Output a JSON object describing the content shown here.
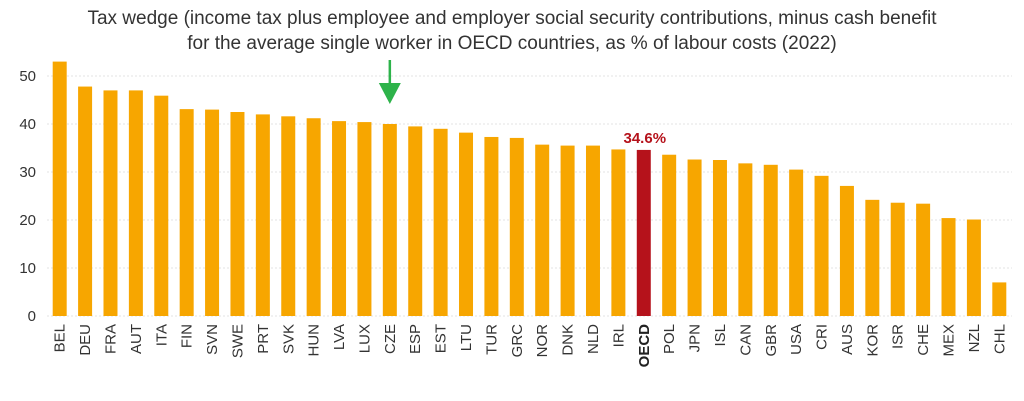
{
  "chart_data": {
    "type": "bar",
    "title_line1": "Tax wedge (income tax plus employee and employer social security contributions, minus cash benefit",
    "title_line2": "for the average single worker in OECD countries, as % of labour costs (2022)",
    "xlabel": "",
    "ylabel": "",
    "ylim": [
      0,
      55
    ],
    "yticks": [
      0,
      10,
      20,
      30,
      40,
      50
    ],
    "grid": true,
    "categories": [
      "BEL",
      "DEU",
      "FRA",
      "AUT",
      "ITA",
      "FIN",
      "SVN",
      "SWE",
      "PRT",
      "SVK",
      "HUN",
      "LVA",
      "LUX",
      "CZE",
      "ESP",
      "EST",
      "LTU",
      "TUR",
      "GRC",
      "NOR",
      "DNK",
      "NLD",
      "IRL",
      "OECD",
      "POL",
      "JPN",
      "ISL",
      "CAN",
      "GBR",
      "USA",
      "CRI",
      "AUS",
      "KOR",
      "ISR",
      "CHE",
      "MEX",
      "NZL",
      "CHL"
    ],
    "values": [
      53.0,
      47.8,
      47.0,
      47.0,
      45.9,
      43.1,
      43.0,
      42.5,
      42.0,
      41.6,
      41.2,
      40.6,
      40.4,
      40.0,
      39.5,
      39.0,
      38.2,
      37.3,
      37.1,
      35.7,
      35.5,
      35.5,
      34.7,
      34.6,
      33.6,
      32.6,
      32.5,
      31.8,
      31.5,
      30.5,
      29.2,
      27.1,
      24.2,
      23.6,
      23.4,
      20.4,
      20.1,
      7.0
    ],
    "highlight_category": "OECD",
    "highlight_label": "34.6%",
    "marker_category": "CZE",
    "colors": {
      "bar": "#f7a600",
      "highlight": "#b5121b",
      "highlight_label": "#b5121b",
      "arrow": "#2db34a"
    }
  }
}
